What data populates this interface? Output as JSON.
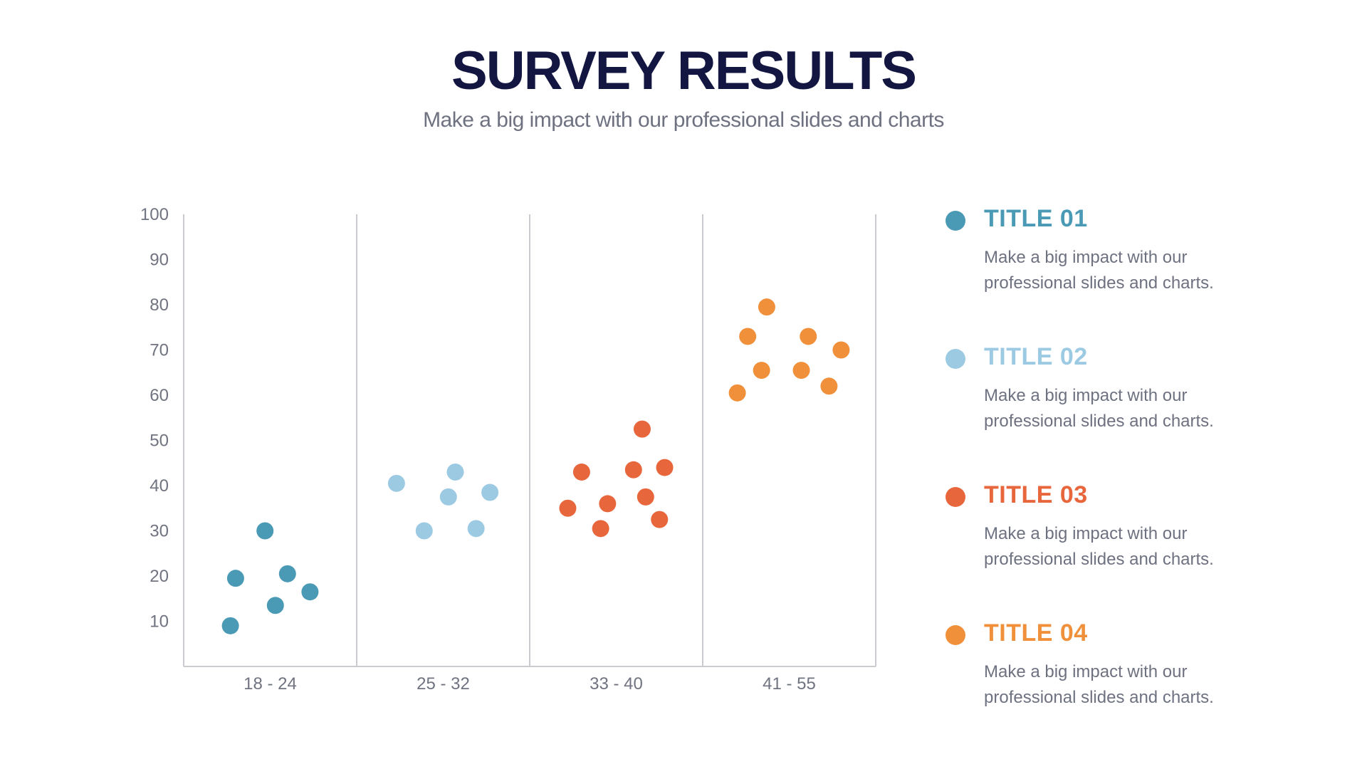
{
  "slide": {
    "title": "SURVEY RESULTS",
    "subtitle": "Make a big impact with our professional slides and charts"
  },
  "legend": [
    {
      "title": "TITLE 01",
      "desc": "Make a big impact with our professional slides and charts.",
      "color": "#4a9ab5"
    },
    {
      "title": "TITLE 02",
      "desc": "Make a big impact with our professional slides and charts.",
      "color": "#9ccae3"
    },
    {
      "title": "TITLE 03",
      "desc": "Make a big impact with our professional slides and charts.",
      "color": "#e8663c"
    },
    {
      "title": "TITLE 04",
      "desc": "Make a big impact with our professional slides and charts.",
      "color": "#f0903a"
    }
  ],
  "chart_data": {
    "type": "scatter",
    "title": "",
    "xlabel": "",
    "ylabel": "",
    "categories": [
      "18 - 24",
      "25 - 32",
      "33 - 40",
      "41 - 55"
    ],
    "y_ticks": [
      10,
      20,
      30,
      40,
      50,
      60,
      70,
      80,
      90,
      100
    ],
    "ylim": [
      0,
      100
    ],
    "grid": "vertical separators between categories",
    "series": [
      {
        "category": "18 - 24",
        "color": "#4a9ab5",
        "points": [
          {
            "pos": 0.27,
            "y": 9
          },
          {
            "pos": 0.3,
            "y": 19.5
          },
          {
            "pos": 0.47,
            "y": 30
          },
          {
            "pos": 0.53,
            "y": 13.5
          },
          {
            "pos": 0.6,
            "y": 20.5
          },
          {
            "pos": 0.73,
            "y": 16.5
          }
        ]
      },
      {
        "category": "25 - 32",
        "color": "#9ccae3",
        "points": [
          {
            "pos": 0.23,
            "y": 40.5
          },
          {
            "pos": 0.39,
            "y": 30
          },
          {
            "pos": 0.53,
            "y": 37.5
          },
          {
            "pos": 0.57,
            "y": 43
          },
          {
            "pos": 0.69,
            "y": 30.5
          },
          {
            "pos": 0.77,
            "y": 38.5
          }
        ]
      },
      {
        "category": "33 - 40",
        "color": "#e8663c",
        "points": [
          {
            "pos": 0.22,
            "y": 35
          },
          {
            "pos": 0.3,
            "y": 43
          },
          {
            "pos": 0.41,
            "y": 30.5
          },
          {
            "pos": 0.45,
            "y": 36
          },
          {
            "pos": 0.6,
            "y": 43.5
          },
          {
            "pos": 0.65,
            "y": 52.5
          },
          {
            "pos": 0.67,
            "y": 37.5
          },
          {
            "pos": 0.75,
            "y": 32.5
          },
          {
            "pos": 0.78,
            "y": 44
          }
        ]
      },
      {
        "category": "41 - 55",
        "color": "#f0903a",
        "points": [
          {
            "pos": 0.2,
            "y": 60.5
          },
          {
            "pos": 0.26,
            "y": 73
          },
          {
            "pos": 0.34,
            "y": 65.5
          },
          {
            "pos": 0.37,
            "y": 79.5
          },
          {
            "pos": 0.57,
            "y": 65.5
          },
          {
            "pos": 0.61,
            "y": 73
          },
          {
            "pos": 0.73,
            "y": 62
          },
          {
            "pos": 0.8,
            "y": 70
          }
        ]
      }
    ]
  }
}
